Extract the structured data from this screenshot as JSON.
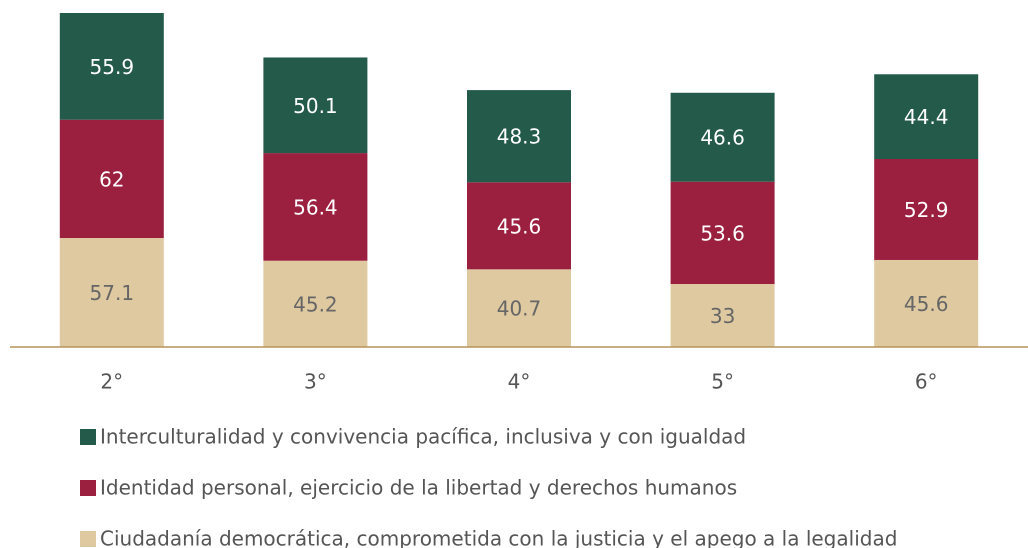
{
  "chart_data": {
    "type": "stacked_bar",
    "categories": [
      "2°",
      "3°",
      "4°",
      "5°",
      "6°"
    ],
    "series": [
      {
        "name": "Interculturalidad y convivencia pacífica, inclusiva y con igualdad",
        "color": "#245a4a",
        "values": [
          55.9,
          50.1,
          48.3,
          46.6,
          44.4
        ]
      },
      {
        "name": "Identidad personal, ejercicio de la libertad y derechos humanos",
        "color": "#9b2040",
        "values": [
          62,
          56.4,
          45.6,
          53.6,
          52.9
        ]
      },
      {
        "name": "Ciudadanía democrática, comprometida con la justicia y el apego a la legalidad",
        "color": "#dfc9a0",
        "values": [
          57.1,
          45.2,
          40.7,
          33,
          45.6
        ]
      }
    ]
  }
}
